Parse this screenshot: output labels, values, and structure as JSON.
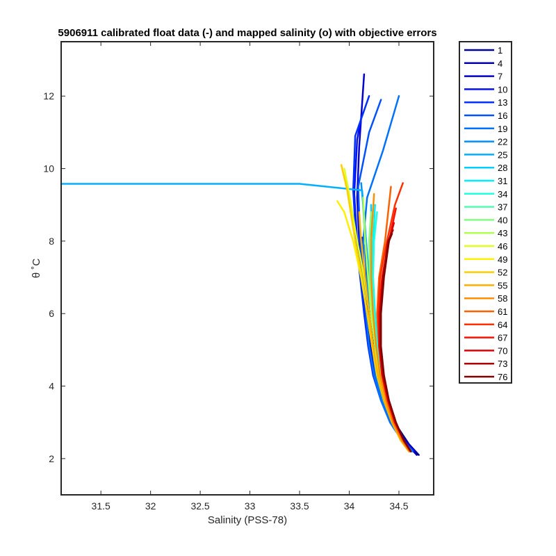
{
  "chart_data": {
    "type": "line",
    "title": "5906911 calibrated float data (-) and mapped salinity (o) with objective errors",
    "xlabel": "Salinity (PSS-78)",
    "ylabel": "θ ˚C",
    "xlim": [
      31.1,
      34.85
    ],
    "ylim": [
      1.0,
      13.5
    ],
    "xticks": [
      "31.5",
      "32",
      "32.5",
      "33",
      "33.5",
      "34",
      "34.5"
    ],
    "yticks": [
      "2",
      "4",
      "6",
      "8",
      "10",
      "12"
    ],
    "grid": false,
    "legend_position": "outside-right",
    "legend": [
      "1",
      "4",
      "7",
      "10",
      "13",
      "16",
      "19",
      "22",
      "25",
      "28",
      "31",
      "34",
      "37",
      "40",
      "43",
      "46",
      "49",
      "52",
      "55",
      "58",
      "61",
      "64",
      "67",
      "70",
      "73",
      "76"
    ],
    "colors": [
      "#00008f",
      "#0000af",
      "#0000cf",
      "#0010ef",
      "#0030ff",
      "#0050ff",
      "#0070ff",
      "#008fff",
      "#00afff",
      "#00cfff",
      "#00efff",
      "#20ffdf",
      "#50ffaf",
      "#80ff80",
      "#afff50",
      "#dfff20",
      "#ffef00",
      "#ffcf00",
      "#ffaf00",
      "#ff8f00",
      "#ff6000",
      "#ff3000",
      "#ff1000",
      "#df0000",
      "#af0000",
      "#800000"
    ],
    "series": [
      {
        "name": "1",
        "x": [
          34.7,
          34.6,
          34.48,
          34.38,
          34.3,
          34.25,
          34.21,
          34.18,
          34.17,
          34.16
        ],
        "y": [
          2.1,
          2.4,
          2.9,
          3.5,
          4.2,
          5.0,
          5.8,
          6.6,
          7.3,
          7.9
        ]
      },
      {
        "name": "4",
        "x": [
          34.68,
          34.58,
          34.46,
          34.36,
          34.28,
          34.23,
          34.19,
          34.16,
          34.14,
          34.13
        ],
        "y": [
          2.1,
          2.4,
          2.9,
          3.5,
          4.2,
          5.0,
          5.8,
          6.7,
          7.5,
          8.1
        ]
      },
      {
        "name": "7",
        "x": [
          34.66,
          34.56,
          34.44,
          34.34,
          34.26,
          34.21,
          34.17,
          34.13,
          34.1,
          34.08,
          34.1,
          34.15
        ],
        "y": [
          2.2,
          2.5,
          3.0,
          3.6,
          4.3,
          5.1,
          6.0,
          7.0,
          8.0,
          9.2,
          10.6,
          12.6
        ]
      },
      {
        "name": "10",
        "x": [
          34.65,
          34.55,
          34.43,
          34.33,
          34.25,
          34.2,
          34.16,
          34.12,
          34.08,
          34.05,
          34.08,
          34.12
        ],
        "y": [
          2.2,
          2.5,
          3.0,
          3.6,
          4.3,
          5.1,
          6.0,
          7.0,
          8.0,
          9.3,
          10.8,
          11.4
        ]
      },
      {
        "name": "13",
        "x": [
          34.64,
          34.54,
          34.42,
          34.32,
          34.24,
          34.19,
          34.15,
          34.11,
          34.07,
          34.04,
          34.06,
          34.2
        ],
        "y": [
          2.2,
          2.5,
          3.0,
          3.6,
          4.3,
          5.1,
          6.0,
          7.0,
          8.0,
          9.4,
          10.9,
          12.0
        ]
      },
      {
        "name": "16",
        "x": [
          34.64,
          34.54,
          34.42,
          34.33,
          34.25,
          34.2,
          34.17,
          34.14,
          34.11,
          34.09,
          34.2,
          34.32
        ],
        "y": [
          2.2,
          2.5,
          3.0,
          3.6,
          4.3,
          5.1,
          6.0,
          7.0,
          8.0,
          9.5,
          11.0,
          11.9
        ]
      },
      {
        "name": "19",
        "x": [
          34.63,
          34.53,
          34.41,
          34.32,
          34.25,
          34.2,
          34.17,
          34.15,
          34.14,
          34.18,
          34.34,
          34.5
        ],
        "y": [
          2.2,
          2.5,
          3.0,
          3.6,
          4.3,
          5.1,
          6.0,
          7.0,
          8.0,
          9.2,
          10.5,
          12.0
        ]
      },
      {
        "name": "22",
        "x": [
          34.63,
          34.54,
          34.43,
          34.34,
          34.27,
          34.23,
          34.2,
          34.18,
          34.16,
          34.14,
          34.12
        ],
        "y": [
          2.2,
          2.5,
          3.0,
          3.6,
          4.3,
          5.1,
          6.0,
          7.0,
          8.0,
          9.0,
          9.6
        ]
      },
      {
        "name": "25",
        "x": [
          34.62,
          34.54,
          34.44,
          34.36,
          34.3,
          34.26,
          34.23,
          34.2,
          34.17,
          34.13,
          33.5,
          32.0,
          31.1
        ],
        "y": [
          2.2,
          2.5,
          3.0,
          3.6,
          4.3,
          5.1,
          6.0,
          7.0,
          8.0,
          9.4,
          9.58,
          9.58,
          9.58
        ]
      },
      {
        "name": "28",
        "x": [
          34.62,
          34.55,
          34.46,
          34.38,
          34.32,
          34.28,
          34.25,
          34.23,
          34.22,
          34.22
        ],
        "y": [
          2.2,
          2.5,
          3.0,
          3.6,
          4.3,
          5.1,
          6.0,
          7.0,
          8.0,
          9.0
        ]
      },
      {
        "name": "31",
        "x": [
          34.62,
          34.55,
          34.46,
          34.39,
          34.33,
          34.29,
          34.26,
          34.24,
          34.24,
          34.26
        ],
        "y": [
          2.2,
          2.5,
          3.0,
          3.6,
          4.3,
          5.1,
          6.0,
          7.0,
          8.0,
          9.0
        ]
      },
      {
        "name": "34",
        "x": [
          34.61,
          34.54,
          34.45,
          34.38,
          34.32,
          34.28,
          34.25,
          34.24,
          34.25,
          34.28
        ],
        "y": [
          2.2,
          2.5,
          3.0,
          3.6,
          4.3,
          5.1,
          6.0,
          7.0,
          8.0,
          8.8
        ]
      },
      {
        "name": "37",
        "x": [
          34.61,
          34.54,
          34.45,
          34.37,
          34.31,
          34.27,
          34.24,
          34.22,
          34.22,
          34.24
        ],
        "y": [
          2.2,
          2.5,
          3.0,
          3.6,
          4.3,
          5.1,
          6.0,
          7.0,
          8.0,
          8.6
        ]
      },
      {
        "name": "40",
        "x": [
          34.6,
          34.53,
          34.44,
          34.36,
          34.3,
          34.26,
          34.23,
          34.21,
          34.2,
          34.22
        ],
        "y": [
          2.2,
          2.5,
          3.0,
          3.6,
          4.3,
          5.1,
          6.0,
          7.0,
          8.0,
          8.8
        ]
      },
      {
        "name": "43",
        "x": [
          34.6,
          34.53,
          34.44,
          34.36,
          34.3,
          34.26,
          34.22,
          34.19,
          34.16,
          34.14
        ],
        "y": [
          2.2,
          2.5,
          3.0,
          3.6,
          4.3,
          5.1,
          6.0,
          7.0,
          8.0,
          9.2
        ]
      },
      {
        "name": "46",
        "x": [
          34.6,
          34.52,
          34.43,
          34.35,
          34.29,
          34.24,
          34.2,
          34.15,
          34.08,
          34.0,
          33.95
        ],
        "y": [
          2.2,
          2.5,
          3.0,
          3.6,
          4.3,
          5.1,
          6.0,
          7.0,
          8.0,
          9.3,
          10.0
        ]
      },
      {
        "name": "49",
        "x": [
          34.6,
          34.52,
          34.43,
          34.35,
          34.28,
          34.23,
          34.18,
          34.12,
          34.04,
          33.95,
          33.88
        ],
        "y": [
          2.2,
          2.5,
          3.0,
          3.6,
          4.3,
          5.1,
          6.0,
          7.0,
          8.0,
          8.8,
          9.1
        ]
      },
      {
        "name": "52",
        "x": [
          34.6,
          34.52,
          34.43,
          34.35,
          34.28,
          34.23,
          34.18,
          34.13,
          34.06,
          33.98,
          33.92
        ],
        "y": [
          2.2,
          2.5,
          3.0,
          3.6,
          4.3,
          5.1,
          6.0,
          7.0,
          8.0,
          9.4,
          10.1
        ]
      },
      {
        "name": "55",
        "x": [
          34.6,
          34.52,
          34.43,
          34.35,
          34.29,
          34.24,
          34.2,
          34.16,
          34.12,
          34.1
        ],
        "y": [
          2.2,
          2.5,
          3.0,
          3.6,
          4.3,
          5.1,
          6.0,
          7.0,
          8.0,
          8.8
        ]
      },
      {
        "name": "58",
        "x": [
          34.61,
          34.53,
          34.44,
          34.37,
          34.31,
          34.27,
          34.24,
          34.22,
          34.22,
          34.25
        ],
        "y": [
          2.2,
          2.5,
          3.0,
          3.6,
          4.3,
          5.1,
          6.0,
          7.0,
          8.0,
          9.3
        ]
      },
      {
        "name": "61",
        "x": [
          34.61,
          34.54,
          34.45,
          34.38,
          34.33,
          34.3,
          34.28,
          34.3,
          34.36,
          34.42
        ],
        "y": [
          2.2,
          2.5,
          3.0,
          3.6,
          4.3,
          5.1,
          6.0,
          7.0,
          8.0,
          9.5
        ]
      },
      {
        "name": "64",
        "x": [
          34.62,
          34.55,
          34.46,
          34.39,
          34.33,
          34.3,
          34.29,
          34.31,
          34.38,
          34.46,
          34.54
        ],
        "y": [
          2.2,
          2.5,
          3.0,
          3.6,
          4.3,
          5.1,
          6.0,
          7.0,
          8.0,
          9.0,
          9.6
        ]
      },
      {
        "name": "67",
        "x": [
          34.62,
          34.55,
          34.46,
          34.39,
          34.33,
          34.3,
          34.3,
          34.33,
          34.4,
          34.47
        ],
        "y": [
          2.2,
          2.5,
          3.0,
          3.6,
          4.3,
          5.1,
          6.0,
          7.0,
          8.0,
          8.9
        ]
      },
      {
        "name": "70",
        "x": [
          34.62,
          34.55,
          34.46,
          34.39,
          34.34,
          34.31,
          34.31,
          34.34,
          34.4,
          34.45
        ],
        "y": [
          2.2,
          2.5,
          3.0,
          3.6,
          4.3,
          5.1,
          6.0,
          7.0,
          8.0,
          8.5
        ]
      },
      {
        "name": "73",
        "x": [
          34.62,
          34.55,
          34.47,
          34.4,
          34.34,
          34.31,
          34.31,
          34.34,
          34.39,
          34.44
        ],
        "y": [
          2.2,
          2.5,
          3.0,
          3.6,
          4.3,
          5.1,
          6.0,
          7.0,
          8.0,
          8.3
        ]
      },
      {
        "name": "76",
        "x": [
          34.62,
          34.55,
          34.47,
          34.4,
          34.35,
          34.32,
          34.32,
          34.35,
          34.4,
          34.43
        ],
        "y": [
          2.2,
          2.5,
          3.0,
          3.6,
          4.3,
          5.1,
          6.0,
          7.0,
          8.0,
          8.2
        ]
      }
    ]
  }
}
